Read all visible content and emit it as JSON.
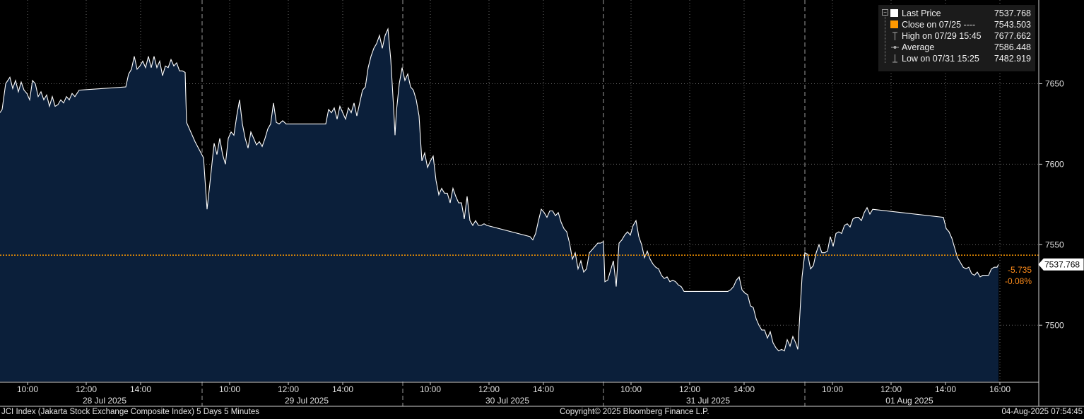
{
  "chart_data": {
    "type": "area",
    "title": "JCI Index (Jakarta Stock Exchange Composite Index) 5 Days 5 Minutes",
    "copyright": "Copyright© 2025 Bloomberg Finance L.P.",
    "timestamp": "04-Aug-2025 07:54:45",
    "ylim": [
      7465,
      7702
    ],
    "y_ticks": [
      "7650",
      "7600",
      "7550",
      "7500"
    ],
    "days": [
      {
        "date": "28 Jul 2025",
        "time_ticks": [
          "10:00",
          "12:00",
          "14:00"
        ]
      },
      {
        "date": "29 Jul 2025",
        "time_ticks": [
          "10:00",
          "12:00",
          "14:00"
        ]
      },
      {
        "date": "30 Jul 2025",
        "time_ticks": [
          "10:00",
          "12:00",
          "14:00"
        ]
      },
      {
        "date": "31 Jul 2025",
        "time_ticks": [
          "10:00",
          "12:00",
          "14:00"
        ]
      },
      {
        "date": "01 Aug 2025",
        "time_ticks": [
          "10:00",
          "12:00",
          "14:00",
          "16:00"
        ]
      }
    ],
    "series": [
      {
        "values": [
          [
            0,
            7632
          ],
          [
            3,
            7634
          ],
          [
            8,
            7650
          ],
          [
            14,
            7654
          ],
          [
            18,
            7647
          ],
          [
            22,
            7652
          ],
          [
            26,
            7645
          ],
          [
            30,
            7651
          ],
          [
            34,
            7646
          ],
          [
            38,
            7644
          ],
          [
            42,
            7640
          ],
          [
            46,
            7652
          ],
          [
            50,
            7650
          ],
          [
            54,
            7642
          ],
          [
            58,
            7645
          ],
          [
            62,
            7640
          ],
          [
            66,
            7643
          ],
          [
            70,
            7636
          ],
          [
            74,
            7642
          ],
          [
            78,
            7636
          ],
          [
            82,
            7637
          ],
          [
            86,
            7640
          ],
          [
            90,
            7638
          ],
          [
            94,
            7642
          ],
          [
            98,
            7640
          ],
          [
            102,
            7644
          ],
          [
            106,
            7642
          ],
          [
            112,
            7646
          ],
          [
            178,
            7648
          ],
          [
            182,
            7656
          ],
          [
            186,
            7659
          ],
          [
            190,
            7667
          ],
          [
            194,
            7659
          ],
          [
            198,
            7661
          ],
          [
            202,
            7664
          ],
          [
            206,
            7660
          ],
          [
            210,
            7667
          ],
          [
            214,
            7660
          ],
          [
            218,
            7667
          ],
          [
            222,
            7660
          ],
          [
            226,
            7664
          ],
          [
            230,
            7655
          ],
          [
            234,
            7661
          ],
          [
            238,
            7660
          ],
          [
            242,
            7665
          ],
          [
            246,
            7661
          ],
          [
            250,
            7663
          ],
          [
            254,
            7658
          ],
          [
            258,
            7658
          ],
          [
            262,
            7657
          ],
          [
            264,
            7626
          ],
          [
            270,
            7620
          ],
          [
            276,
            7614
          ],
          [
            282,
            7609
          ],
          [
            288,
            7604
          ],
          [
            293,
            7572
          ],
          [
            297,
            7588
          ],
          [
            303,
            7613
          ],
          [
            307,
            7606
          ],
          [
            311,
            7616
          ],
          [
            315,
            7606
          ],
          [
            319,
            7600
          ],
          [
            323,
            7616
          ],
          [
            327,
            7620
          ],
          [
            331,
            7618
          ],
          [
            335,
            7630
          ],
          [
            339,
            7640
          ],
          [
            343,
            7625
          ],
          [
            347,
            7616
          ],
          [
            351,
            7610
          ],
          [
            355,
            7620
          ],
          [
            359,
            7616
          ],
          [
            363,
            7612
          ],
          [
            367,
            7614
          ],
          [
            371,
            7611
          ],
          [
            375,
            7616
          ],
          [
            379,
            7622
          ],
          [
            383,
            7625
          ],
          [
            387,
            7638
          ],
          [
            391,
            7626
          ],
          [
            395,
            7625
          ],
          [
            400,
            7627
          ],
          [
            405,
            7625
          ],
          [
            461,
            7625
          ],
          [
            465,
            7634
          ],
          [
            469,
            7632
          ],
          [
            473,
            7635
          ],
          [
            477,
            7628
          ],
          [
            481,
            7636
          ],
          [
            485,
            7632
          ],
          [
            489,
            7628
          ],
          [
            493,
            7635
          ],
          [
            497,
            7632
          ],
          [
            501,
            7638
          ],
          [
            505,
            7630
          ],
          [
            509,
            7638
          ],
          [
            513,
            7646
          ],
          [
            517,
            7648
          ],
          [
            521,
            7660
          ],
          [
            525,
            7667
          ],
          [
            529,
            7672
          ],
          [
            533,
            7675
          ],
          [
            537,
            7680
          ],
          [
            541,
            7672
          ],
          [
            545,
            7680
          ],
          [
            549,
            7684
          ],
          [
            553,
            7665
          ],
          [
            557,
            7635
          ],
          [
            559,
            7618
          ],
          [
            561,
            7633
          ],
          [
            565,
            7650
          ],
          [
            569,
            7660
          ],
          [
            573,
            7652
          ],
          [
            577,
            7656
          ],
          [
            581,
            7648
          ],
          [
            585,
            7646
          ],
          [
            589,
            7640
          ],
          [
            593,
            7630
          ],
          [
            597,
            7602
          ],
          [
            601,
            7607
          ],
          [
            605,
            7598
          ],
          [
            609,
            7602
          ],
          [
            613,
            7605
          ],
          [
            617,
            7590
          ],
          [
            621,
            7581
          ],
          [
            625,
            7585
          ],
          [
            629,
            7582
          ],
          [
            633,
            7582
          ],
          [
            637,
            7576
          ],
          [
            641,
            7585
          ],
          [
            645,
            7580
          ],
          [
            649,
            7576
          ],
          [
            653,
            7576
          ],
          [
            657,
            7566
          ],
          [
            661,
            7580
          ],
          [
            665,
            7565
          ],
          [
            669,
            7562
          ],
          [
            673,
            7565
          ],
          [
            677,
            7562
          ],
          [
            681,
            7562
          ],
          [
            685,
            7563
          ],
          [
            689,
            7562
          ],
          [
            750,
            7555
          ],
          [
            754,
            7553
          ],
          [
            758,
            7557
          ],
          [
            762,
            7565
          ],
          [
            766,
            7572
          ],
          [
            770,
            7570
          ],
          [
            774,
            7567
          ],
          [
            778,
            7571
          ],
          [
            782,
            7571
          ],
          [
            786,
            7568
          ],
          [
            790,
            7570
          ],
          [
            794,
            7564
          ],
          [
            798,
            7560
          ],
          [
            802,
            7558
          ],
          [
            806,
            7551
          ],
          [
            810,
            7541
          ],
          [
            814,
            7545
          ],
          [
            818,
            7535
          ],
          [
            822,
            7540
          ],
          [
            826,
            7533
          ],
          [
            830,
            7535
          ],
          [
            834,
            7545
          ],
          [
            838,
            7547
          ],
          [
            842,
            7549
          ],
          [
            846,
            7551
          ],
          [
            850,
            7551
          ],
          [
            854,
            7552
          ],
          [
            856,
            7527
          ],
          [
            860,
            7528
          ],
          [
            864,
            7534
          ],
          [
            868,
            7540
          ],
          [
            872,
            7524
          ],
          [
            876,
            7551
          ],
          [
            880,
            7553
          ],
          [
            884,
            7556
          ],
          [
            888,
            7558
          ],
          [
            892,
            7556
          ],
          [
            896,
            7562
          ],
          [
            900,
            7565
          ],
          [
            904,
            7555
          ],
          [
            908,
            7550
          ],
          [
            912,
            7542
          ],
          [
            916,
            7546
          ],
          [
            920,
            7541
          ],
          [
            924,
            7538
          ],
          [
            928,
            7536
          ],
          [
            932,
            7535
          ],
          [
            936,
            7531
          ],
          [
            940,
            7529
          ],
          [
            944,
            7530
          ],
          [
            948,
            7527
          ],
          [
            952,
            7528
          ],
          [
            956,
            7527
          ],
          [
            960,
            7525
          ],
          [
            964,
            7524
          ],
          [
            968,
            7521
          ],
          [
            972,
            7521
          ],
          [
            1030,
            7521
          ],
          [
            1034,
            7522
          ],
          [
            1038,
            7524
          ],
          [
            1042,
            7528
          ],
          [
            1046,
            7530
          ],
          [
            1050,
            7522
          ],
          [
            1054,
            7520
          ],
          [
            1058,
            7519
          ],
          [
            1062,
            7512
          ],
          [
            1066,
            7511
          ],
          [
            1070,
            7504
          ],
          [
            1074,
            7500
          ],
          [
            1078,
            7497
          ],
          [
            1082,
            7497
          ],
          [
            1086,
            7492
          ],
          [
            1090,
            7496
          ],
          [
            1094,
            7489
          ],
          [
            1098,
            7486
          ],
          [
            1102,
            7484
          ],
          [
            1106,
            7485
          ],
          [
            1110,
            7484
          ],
          [
            1114,
            7491
          ],
          [
            1118,
            7487
          ],
          [
            1122,
            7493
          ],
          [
            1126,
            7489
          ],
          [
            1129,
            7485
          ],
          [
            1131,
            7500
          ],
          [
            1135,
            7530
          ],
          [
            1139,
            7545
          ],
          [
            1143,
            7544
          ],
          [
            1147,
            7535
          ],
          [
            1151,
            7537
          ],
          [
            1155,
            7545
          ],
          [
            1159,
            7550
          ],
          [
            1163,
            7545
          ],
          [
            1167,
            7545
          ],
          [
            1171,
            7546
          ],
          [
            1175,
            7555
          ],
          [
            1179,
            7549
          ],
          [
            1183,
            7557
          ],
          [
            1187,
            7558
          ],
          [
            1191,
            7557
          ],
          [
            1195,
            7562
          ],
          [
            1199,
            7563
          ],
          [
            1203,
            7561
          ],
          [
            1207,
            7566
          ],
          [
            1211,
            7567
          ],
          [
            1215,
            7567
          ],
          [
            1219,
            7565
          ],
          [
            1223,
            7570
          ],
          [
            1227,
            7573
          ],
          [
            1231,
            7569
          ],
          [
            1235,
            7572
          ],
          [
            1335,
            7567
          ],
          [
            1339,
            7560
          ],
          [
            1343,
            7558
          ],
          [
            1347,
            7554
          ],
          [
            1351,
            7548
          ],
          [
            1355,
            7542
          ],
          [
            1359,
            7539
          ],
          [
            1363,
            7536
          ],
          [
            1367,
            7535
          ],
          [
            1371,
            7536
          ],
          [
            1375,
            7532
          ],
          [
            1379,
            7531
          ],
          [
            1383,
            7533
          ],
          [
            1387,
            7530
          ],
          [
            1391,
            7531
          ],
          [
            1395,
            7531
          ],
          [
            1399,
            7531
          ],
          [
            1403,
            7535
          ],
          [
            1407,
            7536
          ],
          [
            1411,
            7536
          ],
          [
            1413,
            7537.768
          ]
        ]
      }
    ],
    "reference_close": 7543.503,
    "legend": [
      {
        "icon": "last-price-swatch",
        "color": "#ffffff",
        "label": "Last Price",
        "value": "7537.768"
      },
      {
        "icon": "close-swatch",
        "color": "#ff9900",
        "label": "Close on 07/25 ----",
        "value": "7543.503"
      },
      {
        "icon": "high-marker-icon",
        "label": "High on 07/29 15:45",
        "value": "7677.662"
      },
      {
        "icon": "average-marker-icon",
        "label": "Average",
        "value": "7586.448"
      },
      {
        "icon": "low-marker-icon",
        "label": "Low on 07/31 15:25",
        "value": "7482.919"
      }
    ],
    "last_price_tag": "7537.768",
    "change": "-5.735",
    "change_pct": "-0.08%",
    "colors": {
      "area_fill": "#0b1f3a",
      "line": "#ffffff",
      "close_line": "#ff9900",
      "change_text": "#ff8c1a"
    },
    "grid": true
  }
}
